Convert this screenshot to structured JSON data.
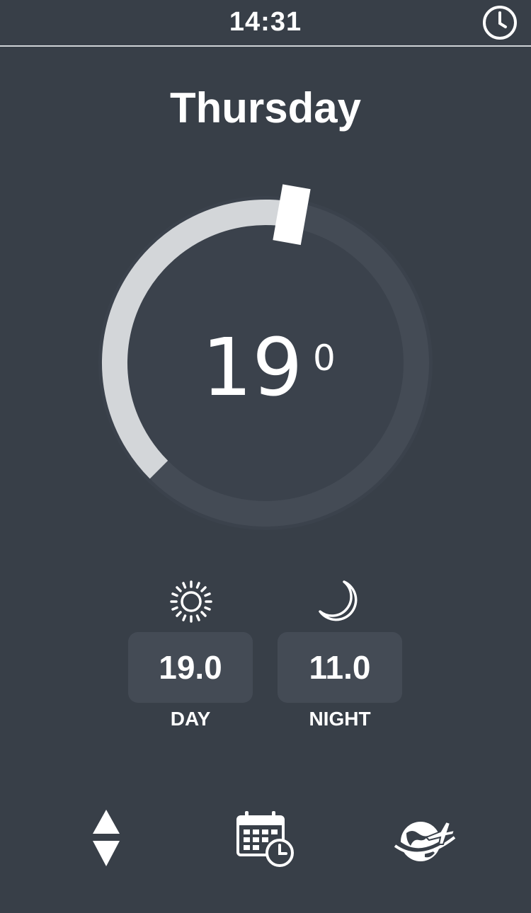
{
  "status_bar": {
    "time": "14:31",
    "clock_icon": "clock-icon"
  },
  "schedule": {
    "day": "Thursday"
  },
  "dial": {
    "current_temperature": "19",
    "unit": "0",
    "level_fraction": 0.58
  },
  "modes": {
    "day": {
      "value": "19.0",
      "label": "DAY",
      "icon": "sun-icon"
    },
    "night": {
      "value": "11.0",
      "label": "NIGHT",
      "icon": "moon-icon"
    }
  },
  "nav": {
    "adjust_icon": "up-down-arrows-icon",
    "schedule_icon": "calendar-clock-icon",
    "holiday_icon": "globe-airplane-icon"
  },
  "colors": {
    "background": "#383f48",
    "track": "#444b55",
    "fill": "#d3d6d9",
    "panel": "#444b55"
  }
}
